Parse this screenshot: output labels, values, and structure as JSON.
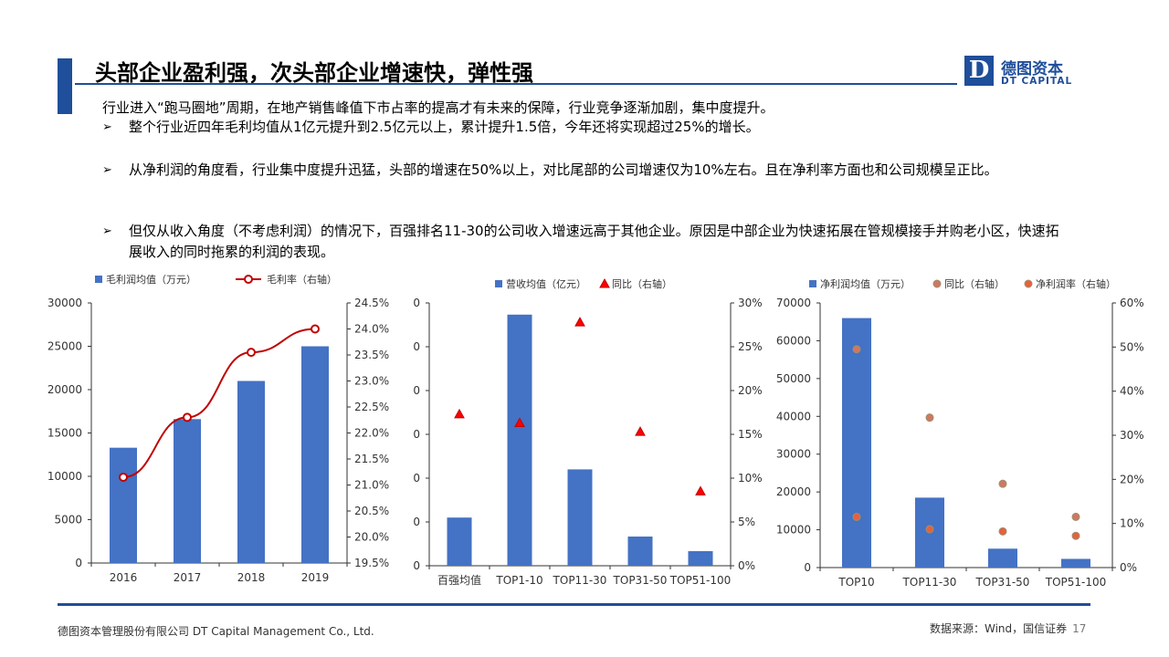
{
  "header": {
    "title": "头部企业盈利强，次头部企业增速快，弹性强",
    "logo_letter": "D",
    "logo_cn": "德图资本",
    "logo_en": "DT CAPITAL",
    "accent_color": "#1f4e9a"
  },
  "intro": "行业进入“跑马圈地”周期，在地产销售峰值下市占率的提高才有未来的保障，行业竞争逐渐加剧，集中度提升。",
  "bullets": [
    {
      "mark": "➢",
      "text": "整个行业近四年毛利均值从1亿元提升到2.5亿元以上，累计提升1.5倍，今年还将实现超过25%的增长。"
    },
    {
      "mark": "➢",
      "text": "从净利润的角度看，行业集中度提升迅猛，头部的增速在50%以上，对比尾部的公司增速仅为10%左右。且在净利率方面也和公司规模呈正比。"
    },
    {
      "mark": "➢",
      "text": "但仅从收入角度（不考虑利润）的情况下，百强排名11-30的公司收入增速远高于其他企业。原因是中部企业为快速拓展在管规模接手并购老小区，快速拓展收入的同时拖累的利润的表现。"
    }
  ],
  "chart_data": [
    {
      "type": "bar",
      "categories": [
        "2016",
        "2017",
        "2018",
        "2019"
      ],
      "series": [
        {
          "name": "毛利润均值（万元）",
          "kind": "bar",
          "axis": "left",
          "color": "#4472c4",
          "values": [
            13300,
            16600,
            21000,
            25000
          ]
        },
        {
          "name": "毛利率（右轴）",
          "kind": "line",
          "axis": "right",
          "color": "#c00000",
          "values": [
            21.15,
            22.3,
            23.55,
            24.0
          ]
        }
      ],
      "ylim": [
        0,
        30000
      ],
      "y_ticks": [
        "0",
        "5000",
        "10000",
        "15000",
        "20000",
        "25000",
        "30000"
      ],
      "y2lim": [
        19.5,
        24.5
      ],
      "y2_ticks": [
        "19.5%",
        "20.0%",
        "20.5%",
        "21.0%",
        "21.5%",
        "22.0%",
        "22.5%",
        "23.0%",
        "23.5%",
        "24.0%",
        "24.5%"
      ],
      "legend": "top-left",
      "grid": false
    },
    {
      "type": "bar",
      "categories": [
        "百强均值",
        "TOP1-10",
        "TOP11-30",
        "TOP31-50",
        "TOP51-100"
      ],
      "series": [
        {
          "name": "营收均值（亿元）",
          "kind": "bar",
          "axis": "left",
          "color": "#4472c4",
          "values": [
            0.33,
            1.72,
            0.66,
            0.2,
            0.1
          ]
        },
        {
          "name": "同比（右轴）",
          "kind": "triangle",
          "axis": "right",
          "color": "#c00000",
          "values": [
            17.3,
            16.3,
            27.8,
            15.3,
            8.5
          ]
        }
      ],
      "ylim": [
        0,
        1.8
      ],
      "y_ticks": [
        "0",
        "0",
        "0",
        "0",
        "0",
        "0",
        "0"
      ],
      "y2lim": [
        0,
        30
      ],
      "y2_ticks": [
        "0%",
        "5%",
        "10%",
        "15%",
        "20%",
        "25%",
        "30%"
      ],
      "legend": "top-left",
      "grid": false
    },
    {
      "type": "bar",
      "categories": [
        "TOP10",
        "TOP11-30",
        "TOP31-50",
        "TOP51-100"
      ],
      "series": [
        {
          "name": "净利润均值（万元）",
          "kind": "bar",
          "axis": "left",
          "color": "#4472c4",
          "values": [
            66000,
            18500,
            5000,
            2300
          ]
        },
        {
          "name": "同比（右轴）",
          "kind": "dot",
          "axis": "right",
          "color": "#c55a11",
          "values": [
            49.5,
            34,
            19,
            11.5
          ]
        },
        {
          "name": "净利润率（右轴）",
          "kind": "dot",
          "axis": "right",
          "color": "#c00000",
          "values": [
            11.5,
            8.7,
            8.2,
            7.2
          ]
        }
      ],
      "ylim": [
        0,
        70000
      ],
      "y_ticks": [
        "0",
        "10000",
        "20000",
        "30000",
        "40000",
        "50000",
        "60000",
        "70000"
      ],
      "y2lim": [
        0,
        60
      ],
      "y2_ticks": [
        "0%",
        "10%",
        "20%",
        "30%",
        "40%",
        "50%",
        "60%"
      ],
      "legend": "top-left",
      "grid": false
    }
  ],
  "footer": {
    "company": "德图资本管理股份有限公司  DT Capital Management  Co., Ltd.",
    "source": "数据来源：Wind，国信证券",
    "page": "17"
  }
}
